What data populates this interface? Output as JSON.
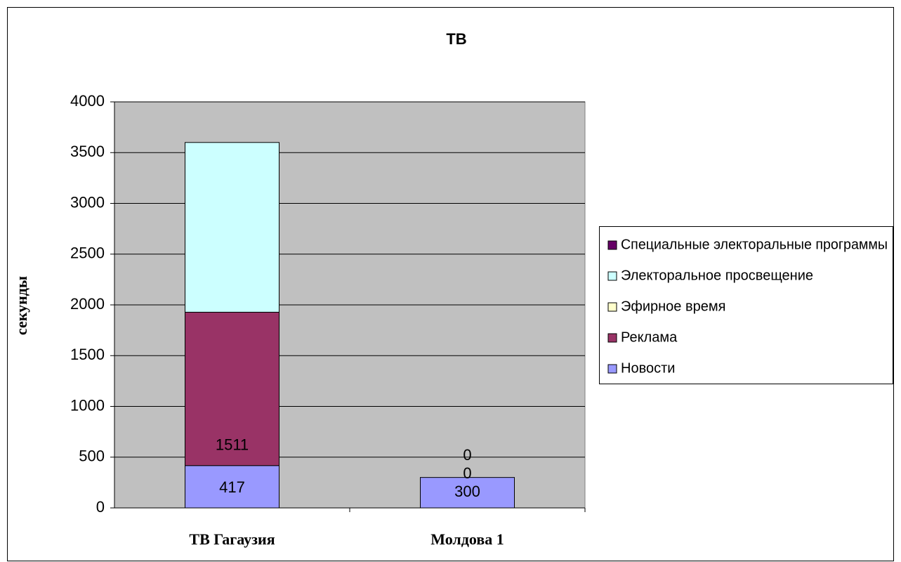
{
  "chart_data": {
    "type": "stacked_bar",
    "title": "ТВ",
    "y_label": "секунды",
    "categories": [
      "ТВ Гагаузия",
      "Молдова 1"
    ],
    "series": [
      {
        "name": "Новости",
        "color": "#9999ff",
        "values": [
          417,
          300
        ],
        "data_labels": [
          true,
          true
        ]
      },
      {
        "name": "Реклама",
        "color": "#993366",
        "values": [
          1511,
          0
        ],
        "data_labels": [
          true,
          true
        ]
      },
      {
        "name": "Эфирное время",
        "color": "#ffffcc",
        "values": [
          0,
          0
        ],
        "data_labels": [
          false,
          true
        ]
      },
      {
        "name": "Электоральное просвещение",
        "color": "#ccffff",
        "values": [
          1672,
          0
        ],
        "data_labels": [
          false,
          false
        ]
      },
      {
        "name": "Специальные электоральные программы",
        "color": "#660066",
        "values": [
          0,
          0
        ],
        "data_labels": [
          false,
          false
        ]
      }
    ],
    "ylim": [
      0,
      4000
    ],
    "yticks": [
      0,
      500,
      1000,
      1500,
      2000,
      2500,
      3000,
      3500,
      4000
    ],
    "grid": true,
    "legend": "right",
    "plot_background": "#c0c0c0"
  }
}
